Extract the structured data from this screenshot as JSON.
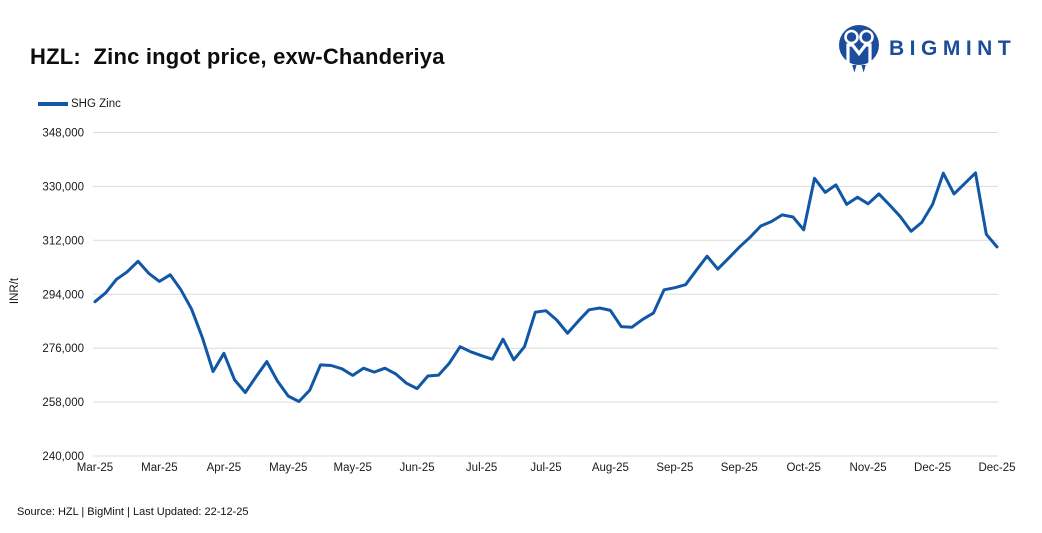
{
  "title": "HZL:  Zinc ingot price, exw-Chanderiya",
  "brand": {
    "name": "BIGMINT",
    "color": "#1c4c9c"
  },
  "legend": {
    "label": "SHG Zinc",
    "color": "#1057a6"
  },
  "source_note": "Source: HZL | BigMint | Last Updated: 22-12-25",
  "chart_data": {
    "type": "line",
    "title": "HZL: Zinc ingot price, exw-Chanderiya",
    "ylabel": "INR/t",
    "xlabel": "",
    "ylim": [
      240000,
      348000
    ],
    "yticks": [
      348000,
      330000,
      312000,
      294000,
      276000,
      258000,
      240000
    ],
    "grid": true,
    "grid_color": "#dcdcdc",
    "legend_position": "top-left",
    "x_tick_labels": [
      "Mar-25",
      "Mar-25",
      "Apr-25",
      "May-25",
      "May-25",
      "Jun-25",
      "Jul-25",
      "Jul-25",
      "Aug-25",
      "Sep-25",
      "Sep-25",
      "Oct-25",
      "Nov-25",
      "Dec-25",
      "Dec-25"
    ],
    "x_label_every": 6,
    "series": [
      {
        "name": "SHG Zinc",
        "color": "#1057a6",
        "values": [
          291500,
          294500,
          299000,
          301500,
          305000,
          301000,
          298300,
          300500,
          295500,
          289000,
          279500,
          268200,
          274300,
          265400,
          261200,
          266500,
          271500,
          265000,
          260000,
          258200,
          262000,
          270400,
          270200,
          269100,
          266900,
          269300,
          268000,
          269300,
          267400,
          264300,
          262500,
          266700,
          267000,
          271000,
          276500,
          274800,
          273500,
          272300,
          279000,
          272100,
          276500,
          288000,
          288500,
          285400,
          281000,
          285000,
          288800,
          289400,
          288600,
          283200,
          283000,
          285600,
          287700,
          295500,
          296200,
          297200,
          302000,
          306700,
          302400,
          306000,
          309700,
          313000,
          316800,
          318300,
          320500,
          319800,
          315500,
          332700,
          328000,
          330500,
          324000,
          326400,
          324200,
          327500,
          323800,
          319900,
          315000,
          318000,
          324000,
          334400,
          327500,
          331000,
          334500,
          314000,
          309800
        ]
      }
    ]
  }
}
